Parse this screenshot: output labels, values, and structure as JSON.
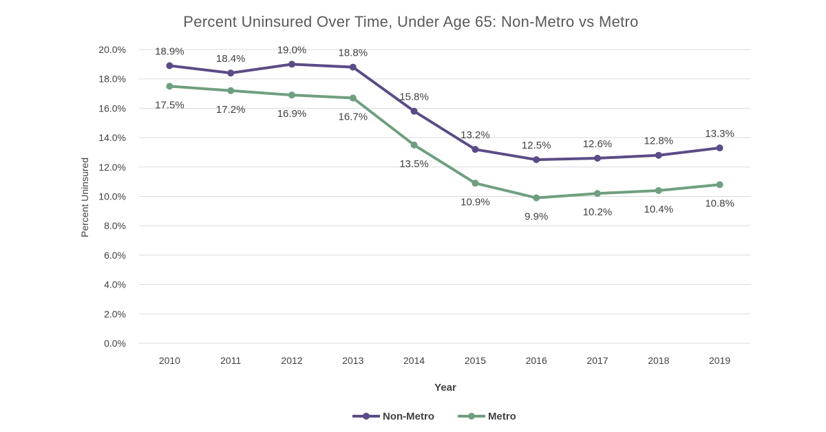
{
  "chart_data": {
    "type": "line",
    "title": "Percent Uninsured Over Time, Under Age 65: Non-Metro vs Metro",
    "xlabel": "Year",
    "ylabel": "Percent Uninsured",
    "categories": [
      "2010",
      "2011",
      "2012",
      "2013",
      "2014",
      "2015",
      "2016",
      "2017",
      "2018",
      "2019"
    ],
    "ylim": [
      0,
      20
    ],
    "yticks": [
      "0.0%",
      "2.0%",
      "4.0%",
      "6.0%",
      "8.0%",
      "10.0%",
      "12.0%",
      "14.0%",
      "16.0%",
      "18.0%",
      "20.0%"
    ],
    "ytick_values": [
      0,
      2,
      4,
      6,
      8,
      10,
      12,
      14,
      16,
      18,
      20
    ],
    "grid": true,
    "legend_position": "bottom",
    "series": [
      {
        "name": "Non-Metro",
        "color": "#5b4c87",
        "values": [
          18.9,
          18.4,
          19.0,
          18.8,
          15.8,
          13.2,
          12.5,
          12.6,
          12.8,
          13.3
        ],
        "labels": [
          "18.9%",
          "18.4%",
          "19.0%",
          "18.8%",
          "15.8%",
          "13.2%",
          "12.5%",
          "12.6%",
          "12.8%",
          "13.3%"
        ],
        "label_side": "above"
      },
      {
        "name": "Metro",
        "color": "#6f9f7f",
        "values": [
          17.5,
          17.2,
          16.9,
          16.7,
          13.5,
          10.9,
          9.9,
          10.2,
          10.4,
          10.8
        ],
        "labels": [
          "17.5%",
          "17.2%",
          "16.9%",
          "16.7%",
          "13.5%",
          "10.9%",
          "9.9%",
          "10.2%",
          "10.4%",
          "10.8%"
        ],
        "label_side": "below"
      }
    ]
  }
}
